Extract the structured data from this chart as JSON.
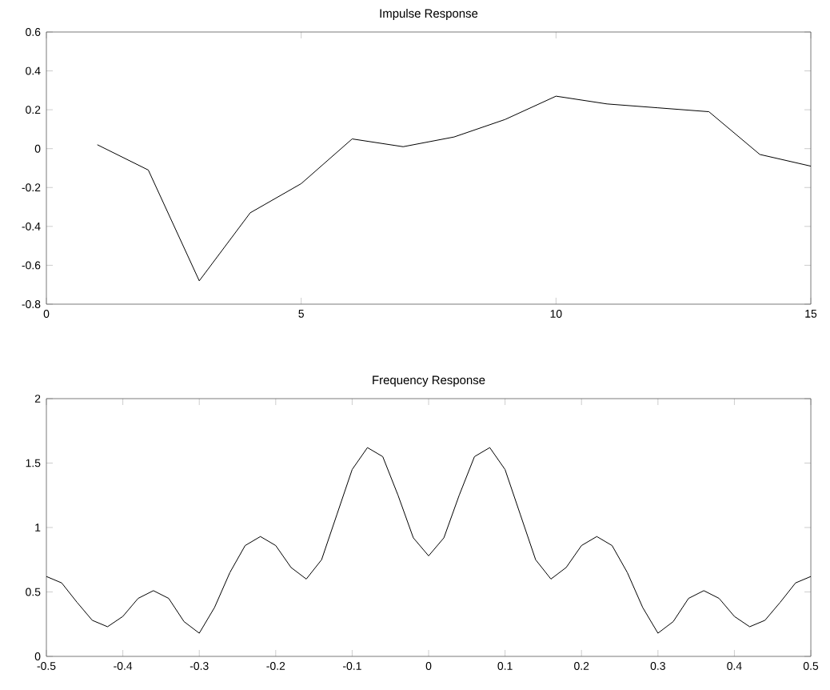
{
  "chart_data": [
    {
      "type": "line",
      "title": "Impulse Response",
      "x": [
        1,
        2,
        3,
        4,
        5,
        6,
        7,
        8,
        9,
        10,
        11,
        12,
        13,
        14,
        15
      ],
      "series": [
        {
          "color": "#000000",
          "values": [
            0.02,
            -0.11,
            -0.68,
            -0.33,
            -0.18,
            0.05,
            0.01,
            0.06,
            0.15,
            0.27,
            0.23,
            0.21,
            0.19,
            -0.03,
            -0.09
          ]
        }
      ],
      "xlim": [
        0,
        15
      ],
      "xticks": [
        0,
        5,
        10,
        15
      ],
      "ylim": [
        -0.8,
        0.6
      ],
      "yticks": [
        -0.8,
        -0.6,
        -0.4,
        -0.2,
        0,
        0.2,
        0.4,
        0.6
      ],
      "marker": "none",
      "line_style": "solid"
    },
    {
      "type": "line",
      "title": "Frequency Response",
      "x": [
        -0.5,
        -0.48,
        -0.46,
        -0.44,
        -0.42,
        -0.4,
        -0.38,
        -0.36,
        -0.34,
        -0.32,
        -0.3,
        -0.28,
        -0.26,
        -0.24,
        -0.22,
        -0.2,
        -0.18,
        -0.16,
        -0.14,
        -0.12,
        -0.1,
        -0.08,
        -0.06,
        -0.04,
        -0.02,
        0,
        0.02,
        0.04,
        0.06,
        0.08,
        0.1,
        0.12,
        0.14,
        0.16,
        0.18,
        0.2,
        0.22,
        0.24,
        0.26,
        0.28,
        0.3,
        0.32,
        0.34,
        0.36,
        0.38,
        0.4,
        0.42,
        0.44,
        0.46,
        0.48,
        0.5
      ],
      "series": [
        {
          "color": "#000000",
          "values": [
            0.62,
            0.57,
            0.42,
            0.28,
            0.23,
            0.31,
            0.45,
            0.51,
            0.45,
            0.27,
            0.18,
            0.38,
            0.65,
            0.86,
            0.93,
            0.86,
            0.69,
            0.6,
            0.75,
            1.1,
            1.45,
            1.62,
            1.55,
            1.25,
            0.92,
            0.78,
            0.92,
            1.25,
            1.55,
            1.62,
            1.45,
            1.1,
            0.75,
            0.6,
            0.69,
            0.86,
            0.93,
            0.86,
            0.65,
            0.38,
            0.18,
            0.27,
            0.45,
            0.51,
            0.45,
            0.31,
            0.23,
            0.28,
            0.42,
            0.57,
            0.62
          ]
        }
      ],
      "xlim": [
        -0.5,
        0.5
      ],
      "xticks": [
        -0.5,
        -0.4,
        -0.3,
        -0.2,
        -0.1,
        0,
        0.1,
        0.2,
        0.3,
        0.4,
        0.5
      ],
      "ylim": [
        0,
        2
      ],
      "yticks": [
        0,
        0.5,
        1,
        1.5,
        2
      ],
      "marker": "none",
      "line_style": "solid"
    }
  ]
}
